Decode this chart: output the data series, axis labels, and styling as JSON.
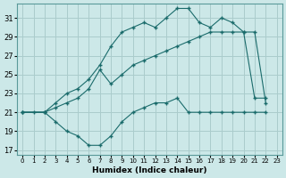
{
  "xlabel": "Humidex (Indice chaleur)",
  "xlim": [
    -0.5,
    23.5
  ],
  "ylim": [
    16.5,
    32.5
  ],
  "xticks": [
    0,
    1,
    2,
    3,
    4,
    5,
    6,
    7,
    8,
    9,
    10,
    11,
    12,
    13,
    14,
    15,
    16,
    17,
    18,
    19,
    20,
    21,
    22,
    23
  ],
  "yticks": [
    17,
    19,
    21,
    23,
    25,
    27,
    29,
    31
  ],
  "bg_color": "#cce8e8",
  "line_color": "#1a6b6b",
  "grid_color": "#aacccc",
  "line1_x": [
    0,
    1,
    2,
    3,
    4,
    5,
    6,
    7,
    8,
    9,
    10,
    11,
    12,
    13,
    14,
    15,
    16,
    17,
    18,
    19,
    20,
    21,
    22
  ],
  "line1_y": [
    21,
    21,
    21,
    20,
    19,
    18.5,
    17.5,
    17.5,
    18.5,
    20,
    21,
    21.5,
    22,
    22,
    22.5,
    21,
    21,
    21,
    21,
    21,
    21,
    21,
    21
  ],
  "line2_x": [
    0,
    2,
    3,
    4,
    5,
    6,
    7,
    8,
    9,
    10,
    11,
    12,
    13,
    14,
    15,
    16,
    17,
    18,
    19,
    20,
    21,
    22
  ],
  "line2_y": [
    21,
    21,
    21.5,
    22,
    22.5,
    23.5,
    25.5,
    24,
    25,
    26,
    26.5,
    27,
    27.5,
    28,
    28.5,
    29,
    29.5,
    29.5,
    29.5,
    29.5,
    29.5,
    22
  ],
  "line3_x": [
    0,
    2,
    3,
    4,
    5,
    6,
    7,
    8,
    9,
    10,
    11,
    12,
    13,
    14,
    15,
    16,
    17,
    18,
    19,
    20,
    21,
    22
  ],
  "line3_y": [
    21,
    21,
    22,
    23,
    23.5,
    24.5,
    26,
    28,
    29.5,
    30,
    30.5,
    30,
    31,
    32,
    32,
    30.5,
    30,
    31,
    30.5,
    29.5,
    22.5,
    22.5
  ],
  "figsize": [
    3.2,
    2.0
  ],
  "dpi": 100
}
